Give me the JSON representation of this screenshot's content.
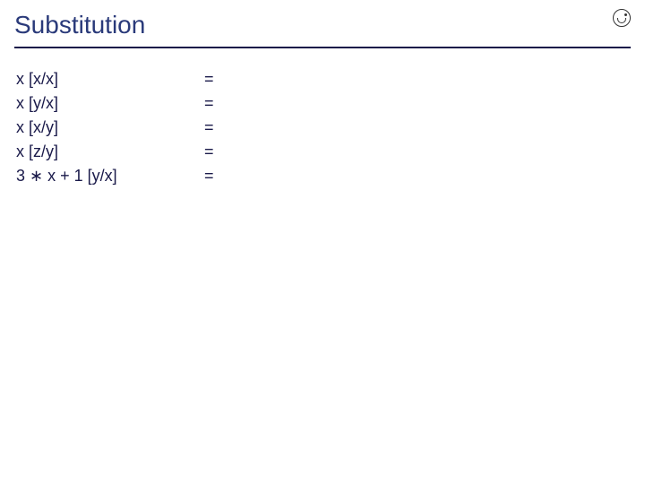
{
  "slide": {
    "title": "Substitution",
    "title_color": "#2a3a7a",
    "underline_color": "#1a1a4a",
    "body_color": "#1a1a4a",
    "background_color": "#ffffff",
    "title_fontsize": 28,
    "body_fontsize": 18,
    "rows": [
      {
        "expression": "x [x/x]",
        "equals": "=",
        "result": ""
      },
      {
        "expression": "x [y/x]",
        "equals": "=",
        "result": ""
      },
      {
        "expression": "x [x/y]",
        "equals": "=",
        "result": ""
      },
      {
        "expression": "x [z/y]",
        "equals": "=",
        "result": ""
      },
      {
        "expression": "3 ∗ x + 1 [y/x]",
        "equals": "=",
        "result": ""
      }
    ]
  }
}
